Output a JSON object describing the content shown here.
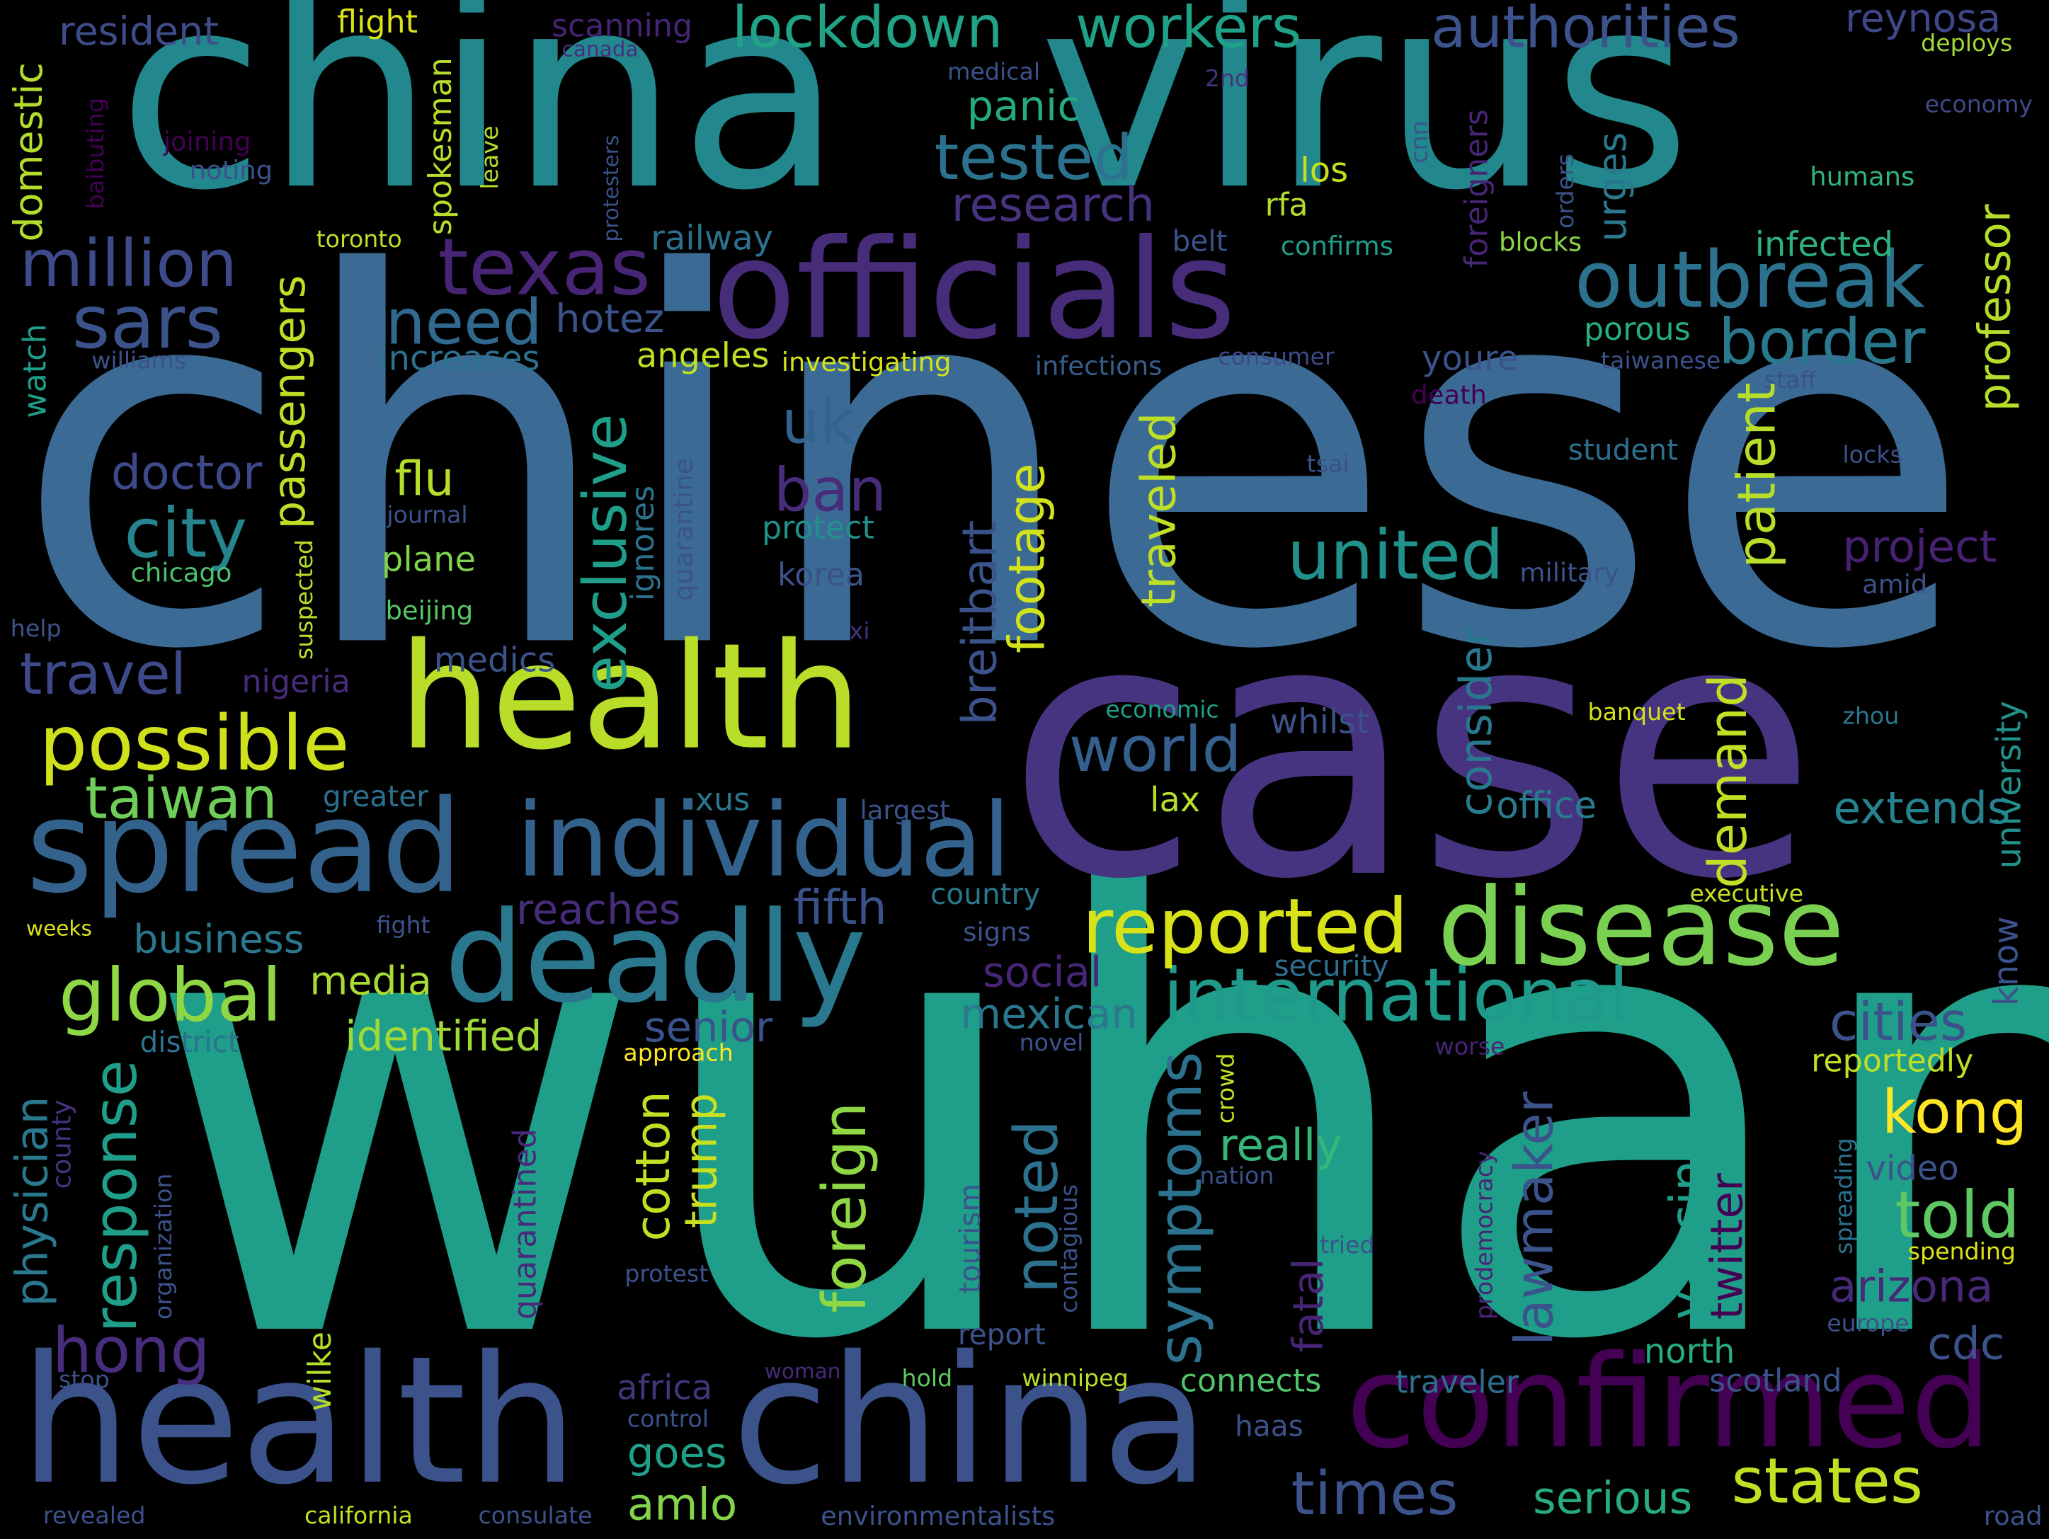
{
  "words": [
    {
      "text": "chinese",
      "color": "#3b6b94"
    },
    {
      "text": "wuhan",
      "color": "#1f9e89"
    },
    {
      "text": "china",
      "color": "#22888e"
    },
    {
      "text": "virus",
      "color": "#22888e"
    },
    {
      "text": "case",
      "color": "#463480"
    },
    {
      "text": "health",
      "color": "#b8de29"
    },
    {
      "text": "officials",
      "color": "#472c7a"
    },
    {
      "text": "disease",
      "color": "#7ad151"
    },
    {
      "text": "deadly",
      "color": "#2a788e"
    },
    {
      "text": "spread",
      "color": "#33638d"
    },
    {
      "text": "individual",
      "color": "#33638d"
    },
    {
      "text": "health",
      "color": "#3b528b"
    },
    {
      "text": "china",
      "color": "#3b528b"
    },
    {
      "text": "confirmed",
      "color": "#440154"
    },
    {
      "text": "international",
      "color": "#1f9a8a"
    },
    {
      "text": "outbreak",
      "color": "#2c728e"
    },
    {
      "text": "lockdown",
      "color": "#20a386"
    },
    {
      "text": "workers",
      "color": "#1fa187"
    },
    {
      "text": "authorities",
      "color": "#3b528b"
    },
    {
      "text": "texas",
      "color": "#482475"
    },
    {
      "text": "million",
      "color": "#3e4a89"
    },
    {
      "text": "sars",
      "color": "#3b528b"
    },
    {
      "text": "need",
      "color": "#31688e"
    },
    {
      "text": "border",
      "color": "#2a788e"
    },
    {
      "text": "tested",
      "color": "#2c728e"
    },
    {
      "text": "research",
      "color": "#46327e"
    },
    {
      "text": "city",
      "color": "#25848e"
    },
    {
      "text": "possible",
      "color": "#d0e11c"
    },
    {
      "text": "taiwan",
      "color": "#6ece58"
    },
    {
      "text": "global",
      "color": "#8fd744"
    },
    {
      "text": "reported",
      "color": "#d8e219"
    },
    {
      "text": "united",
      "color": "#21918c"
    },
    {
      "text": "world",
      "color": "#355f8d"
    },
    {
      "text": "kong",
      "color": "#fde725"
    },
    {
      "text": "told",
      "color": "#5ec962"
    },
    {
      "text": "times",
      "color": "#3b528b"
    },
    {
      "text": "states",
      "color": "#c2df23"
    },
    {
      "text": "hong",
      "color": "#472d7b"
    },
    {
      "text": "travel",
      "color": "#3e4989"
    },
    {
      "text": "uk",
      "color": "#33638d"
    },
    {
      "text": "ban",
      "color": "#472c7a"
    },
    {
      "text": "flu",
      "color": "#b5de2b"
    },
    {
      "text": "doctor",
      "color": "#3e4989"
    },
    {
      "text": "hotez",
      "color": "#3b528b"
    },
    {
      "text": "cities",
      "color": "#3b528b"
    },
    {
      "text": "arizona",
      "color": "#482878"
    },
    {
      "text": "cdc",
      "color": "#3b528b"
    },
    {
      "text": "fifth",
      "color": "#3b528b"
    },
    {
      "text": "business",
      "color": "#2a788e"
    },
    {
      "text": "media",
      "color": "#a8db34"
    },
    {
      "text": "identified",
      "color": "#a0da39"
    },
    {
      "text": "senior",
      "color": "#3b528b"
    },
    {
      "text": "mexican",
      "color": "#2a788e"
    },
    {
      "text": "really",
      "color": "#35b779"
    },
    {
      "text": "amlo",
      "color": "#84d44b"
    },
    {
      "text": "goes",
      "color": "#1fa088"
    },
    {
      "text": "serious",
      "color": "#27ad81"
    },
    {
      "text": "reaches",
      "color": "#472c7a"
    },
    {
      "text": "social",
      "color": "#482677"
    },
    {
      "text": "project",
      "color": "#482173"
    },
    {
      "text": "extends",
      "color": "#26828e"
    },
    {
      "text": "office",
      "color": "#287c8e"
    },
    {
      "text": "panic",
      "color": "#25ab82"
    },
    {
      "text": "flight",
      "color": "#dae319"
    },
    {
      "text": "resident",
      "color": "#3e4c8a"
    },
    {
      "text": "scanning",
      "color": "#482475"
    },
    {
      "text": "reynosa",
      "color": "#3f4788"
    },
    {
      "text": "canada",
      "color": "#46307e"
    },
    {
      "text": "medical",
      "color": "#3b528b"
    },
    {
      "text": "2nd",
      "color": "#46327e"
    },
    {
      "text": "deploys",
      "color": "#a2da37"
    },
    {
      "text": "economy",
      "color": "#3e4a89"
    },
    {
      "text": "joining",
      "color": "#440154"
    },
    {
      "text": "noting",
      "color": "#3c508b"
    },
    {
      "text": "humans",
      "color": "#31b57b"
    },
    {
      "text": "infected",
      "color": "#2db27d"
    },
    {
      "text": "railway",
      "color": "#2d708e"
    },
    {
      "text": "toronto",
      "color": "#c0df25"
    },
    {
      "text": "belt",
      "color": "#3b528b"
    },
    {
      "text": "confirms",
      "color": "#1f9e89"
    },
    {
      "text": "blocks",
      "color": "#8bd646"
    },
    {
      "text": "los",
      "color": "#c5e021"
    },
    {
      "text": "rfa",
      "color": "#b2dd2d"
    },
    {
      "text": "increases",
      "color": "#2d718e"
    },
    {
      "text": "angeles",
      "color": "#bddf26"
    },
    {
      "text": "investigating",
      "color": "#d2e21b"
    },
    {
      "text": "infections",
      "color": "#355e8d"
    },
    {
      "text": "consumer",
      "color": "#3e4989"
    },
    {
      "text": "youre",
      "color": "#3b528b"
    },
    {
      "text": "porous",
      "color": "#27ad81"
    },
    {
      "text": "taiwanese",
      "color": "#3b528b"
    },
    {
      "text": "staff",
      "color": "#3b528b"
    },
    {
      "text": "death",
      "color": "#440154"
    },
    {
      "text": "williams",
      "color": "#3b528b"
    },
    {
      "text": "student",
      "color": "#2e6f8e"
    },
    {
      "text": "locks",
      "color": "#3b528b"
    },
    {
      "text": "tsai",
      "color": "#3b528b"
    },
    {
      "text": "journal",
      "color": "#3b528b"
    },
    {
      "text": "protect",
      "color": "#21918c"
    },
    {
      "text": "plane",
      "color": "#7fd34e"
    },
    {
      "text": "chicago",
      "color": "#4ac16d"
    },
    {
      "text": "korea",
      "color": "#3b528b"
    },
    {
      "text": "military",
      "color": "#3b528b"
    },
    {
      "text": "amid",
      "color": "#3b528b"
    },
    {
      "text": "beijing",
      "color": "#56c667"
    },
    {
      "text": "help",
      "color": "#3b528b"
    },
    {
      "text": "xi",
      "color": "#46327e"
    },
    {
      "text": "medics",
      "color": "#3b528b"
    },
    {
      "text": "nigeria",
      "color": "#472c7a"
    },
    {
      "text": "economic",
      "color": "#1fa088"
    },
    {
      "text": "whilst",
      "color": "#3b528b"
    },
    {
      "text": "banquet",
      "color": "#d5e21a"
    },
    {
      "text": "zhou",
      "color": "#2a788e"
    },
    {
      "text": "greater",
      "color": "#2d708e"
    },
    {
      "text": "xus",
      "color": "#2a788e"
    },
    {
      "text": "largest",
      "color": "#3b528b"
    },
    {
      "text": "lax",
      "color": "#b5de2b"
    },
    {
      "text": "country",
      "color": "#2a788e"
    },
    {
      "text": "executive",
      "color": "#c8e020"
    },
    {
      "text": "weeks",
      "color": "#dde318"
    },
    {
      "text": "fight",
      "color": "#3b528b"
    },
    {
      "text": "signs",
      "color": "#3b528b"
    },
    {
      "text": "security",
      "color": "#2e6e8e"
    },
    {
      "text": "district",
      "color": "#2c728e"
    },
    {
      "text": "approach",
      "color": "#fde725"
    },
    {
      "text": "novel",
      "color": "#3b528b"
    },
    {
      "text": "worse",
      "color": "#482475"
    },
    {
      "text": "reportedly",
      "color": "#bddf26"
    },
    {
      "text": "video",
      "color": "#3b528b"
    },
    {
      "text": "nation",
      "color": "#3b528b"
    },
    {
      "text": "tried",
      "color": "#3b528b"
    },
    {
      "text": "spending",
      "color": "#dae319"
    },
    {
      "text": "protest",
      "color": "#3b528b"
    },
    {
      "text": "report",
      "color": "#3b528b"
    },
    {
      "text": "europe",
      "color": "#3b528b"
    },
    {
      "text": "north",
      "color": "#26ad81"
    },
    {
      "text": "scotland",
      "color": "#3b528b"
    },
    {
      "text": "traveler",
      "color": "#2e6f8e"
    },
    {
      "text": "stop",
      "color": "#3b528b"
    },
    {
      "text": "africa",
      "color": "#46337e"
    },
    {
      "text": "woman",
      "color": "#472a7a"
    },
    {
      "text": "hold",
      "color": "#5ec962"
    },
    {
      "text": "winnipeg",
      "color": "#b8de29"
    },
    {
      "text": "connects",
      "color": "#50c46a"
    },
    {
      "text": "control",
      "color": "#3b528b"
    },
    {
      "text": "haas",
      "color": "#3b528b"
    },
    {
      "text": "revealed",
      "color": "#3b528b"
    },
    {
      "text": "california",
      "color": "#c2df23"
    },
    {
      "text": "consulate",
      "color": "#3b528b"
    },
    {
      "text": "environmentalists",
      "color": "#3b528b"
    },
    {
      "text": "road",
      "color": "#3b528b"
    },
    {
      "text": "domestic",
      "color": "#b2dd2d"
    },
    {
      "text": "baibuting",
      "color": "#440154"
    },
    {
      "text": "spokesman",
      "color": "#b8de29"
    },
    {
      "text": "leave",
      "color": "#b5de2b"
    },
    {
      "text": "protesters",
      "color": "#3b528b"
    },
    {
      "text": "cnn",
      "color": "#3b528b"
    },
    {
      "text": "foreigners",
      "color": "#482475"
    },
    {
      "text": "orders",
      "color": "#3b528b"
    },
    {
      "text": "urges",
      "color": "#2a788e"
    },
    {
      "text": "professor",
      "color": "#b5de2b"
    },
    {
      "text": "passengers",
      "color": "#bddf26"
    },
    {
      "text": "watch",
      "color": "#1f9e89"
    },
    {
      "text": "exclusive",
      "color": "#1f9e89"
    },
    {
      "text": "traveled",
      "color": "#bddf26"
    },
    {
      "text": "footage",
      "color": "#d2e21b"
    },
    {
      "text": "breitbart",
      "color": "#3b528b"
    },
    {
      "text": "ignores",
      "color": "#2c728e"
    },
    {
      "text": "quarantine",
      "color": "#3b528b"
    },
    {
      "text": "suspected",
      "color": "#b5de2b"
    },
    {
      "text": "patient",
      "color": "#b8de29"
    },
    {
      "text": "demand",
      "color": "#c0df25"
    },
    {
      "text": "consider",
      "color": "#2a788e"
    },
    {
      "text": "university",
      "color": "#21918c"
    },
    {
      "text": "know",
      "color": "#3b528b"
    },
    {
      "text": "response",
      "color": "#1f9e89"
    },
    {
      "text": "physician",
      "color": "#2a788e"
    },
    {
      "text": "county",
      "color": "#46327e"
    },
    {
      "text": "organization",
      "color": "#3b528b"
    },
    {
      "text": "foreign",
      "color": "#8fd744"
    },
    {
      "text": "cotton",
      "color": "#c2df23"
    },
    {
      "text": "trump",
      "color": "#c8e020"
    },
    {
      "text": "noted",
      "color": "#2c728e"
    },
    {
      "text": "symptoms",
      "color": "#2c728e"
    },
    {
      "text": "tourism",
      "color": "#3b528b"
    },
    {
      "text": "contagious",
      "color": "#3b528b"
    },
    {
      "text": "crowd",
      "color": "#c5e021"
    },
    {
      "text": "lawmaker",
      "color": "#3b528b"
    },
    {
      "text": "fatal",
      "color": "#482475"
    },
    {
      "text": "quarantined",
      "color": "#472a7a"
    },
    {
      "text": "wilke",
      "color": "#b5de2b"
    },
    {
      "text": "vaccine",
      "color": "#1f9e89"
    },
    {
      "text": "twitter",
      "color": "#440154"
    },
    {
      "text": "prodemocracy",
      "color": "#482475"
    },
    {
      "text": "spreading",
      "color": "#2c728e"
    }
  ]
}
